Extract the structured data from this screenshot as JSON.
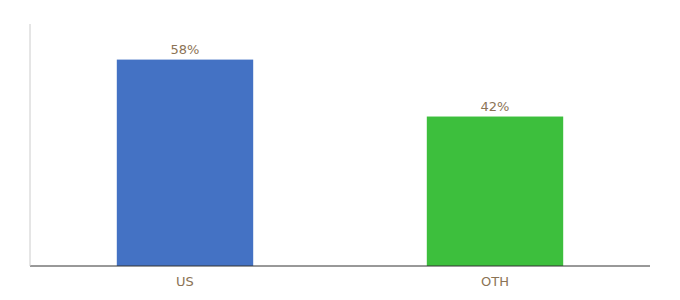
{
  "chart_data": {
    "type": "bar",
    "categories": [
      "US",
      "OTH"
    ],
    "values": [
      58,
      42
    ],
    "value_labels": [
      "58%",
      "42%"
    ],
    "colors": [
      "#4472C4",
      "#3DBF3D"
    ],
    "ylim": [
      0,
      68
    ],
    "data_labels": true,
    "tick_labels": "x",
    "grid": false
  }
}
